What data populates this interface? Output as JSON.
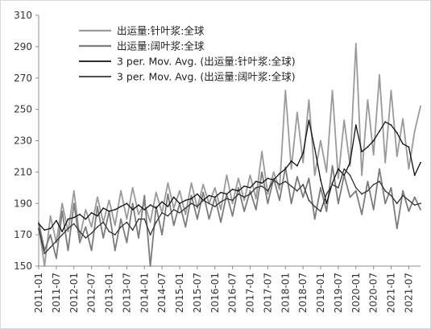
{
  "chart_data": {
    "type": "line",
    "title": "",
    "xlabel": "",
    "ylabel": "",
    "ylim": [
      150,
      310
    ],
    "yticks": [
      150,
      170,
      190,
      210,
      230,
      250,
      270,
      290,
      310
    ],
    "xlim": [
      "2011-01",
      "2021-11"
    ],
    "xticks": [
      "2011-01",
      "2011-07",
      "2012-01",
      "2012-07",
      "2013-01",
      "2013-07",
      "2014-01",
      "2014-07",
      "2015-01",
      "2015-07",
      "2016-01",
      "2016-07",
      "2017-01",
      "2017-07",
      "2018-01",
      "2018-07",
      "2019-01",
      "2019-07",
      "2020-01",
      "2020-07",
      "2021-01",
      "2021-07"
    ],
    "grid": false,
    "legend_position": "top-left",
    "series": [
      {
        "name": "出运量:针叶浆:全球",
        "color": "#9a9a9a",
        "x": [
          "2011-01",
          "2011-03",
          "2011-05",
          "2011-07",
          "2011-09",
          "2011-11",
          "2012-01",
          "2012-03",
          "2012-05",
          "2012-07",
          "2012-09",
          "2012-11",
          "2013-01",
          "2013-03",
          "2013-05",
          "2013-07",
          "2013-09",
          "2013-11",
          "2014-01",
          "2014-03",
          "2014-05",
          "2014-07",
          "2014-09",
          "2014-11",
          "2015-01",
          "2015-03",
          "2015-05",
          "2015-07",
          "2015-09",
          "2015-11",
          "2016-01",
          "2016-03",
          "2016-05",
          "2016-07",
          "2016-09",
          "2016-11",
          "2017-01",
          "2017-03",
          "2017-05",
          "2017-07",
          "2017-09",
          "2017-11",
          "2018-01",
          "2018-03",
          "2018-05",
          "2018-07",
          "2018-09",
          "2018-11",
          "2019-01",
          "2019-03",
          "2019-05",
          "2019-07",
          "2019-09",
          "2019-11",
          "2020-01",
          "2020-03",
          "2020-05",
          "2020-07",
          "2020-09",
          "2020-11",
          "2021-01",
          "2021-03",
          "2021-05",
          "2021-07",
          "2021-09",
          "2021-11"
        ],
        "values": [
          176,
          150,
          182,
          165,
          190,
          172,
          198,
          168,
          186,
          175,
          194,
          178,
          192,
          176,
          198,
          180,
          200,
          183,
          190,
          178,
          197,
          184,
          203,
          187,
          198,
          183,
          203,
          187,
          202,
          190,
          200,
          186,
          208,
          190,
          206,
          192,
          208,
          193,
          223,
          196,
          210,
          199,
          262,
          212,
          248,
          216,
          256,
          208,
          230,
          210,
          262,
          206,
          243,
          214,
          292,
          208,
          256,
          221,
          272,
          216,
          262,
          220,
          244,
          212,
          236,
          252
        ]
      },
      {
        "name": "出运量:阔叶浆:全球",
        "color": "#7c7c7c",
        "x": [
          "2011-01",
          "2011-03",
          "2011-05",
          "2011-07",
          "2011-09",
          "2011-11",
          "2012-01",
          "2012-03",
          "2012-05",
          "2012-07",
          "2012-09",
          "2012-11",
          "2013-01",
          "2013-03",
          "2013-05",
          "2013-07",
          "2013-09",
          "2013-11",
          "2014-01",
          "2014-03",
          "2014-05",
          "2014-07",
          "2014-09",
          "2014-11",
          "2015-01",
          "2015-03",
          "2015-05",
          "2015-07",
          "2015-09",
          "2015-11",
          "2016-01",
          "2016-03",
          "2016-05",
          "2016-07",
          "2016-09",
          "2016-11",
          "2017-01",
          "2017-03",
          "2017-05",
          "2017-07",
          "2017-09",
          "2017-11",
          "2018-01",
          "2018-03",
          "2018-05",
          "2018-07",
          "2018-09",
          "2018-11",
          "2019-01",
          "2019-03",
          "2019-05",
          "2019-07",
          "2019-09",
          "2019-11",
          "2020-01",
          "2020-03",
          "2020-05",
          "2020-07",
          "2020-09",
          "2020-11",
          "2021-01",
          "2021-03",
          "2021-05",
          "2021-07",
          "2021-09",
          "2021-11"
        ],
        "values": [
          178,
          160,
          170,
          155,
          185,
          160,
          190,
          165,
          175,
          160,
          188,
          168,
          185,
          160,
          180,
          165,
          190,
          168,
          195,
          150,
          188,
          170,
          196,
          176,
          190,
          175,
          195,
          180,
          197,
          180,
          194,
          178,
          196,
          182,
          200,
          185,
          198,
          186,
          210,
          190,
          206,
          192,
          213,
          190,
          207,
          194,
          206,
          180,
          200,
          185,
          214,
          190,
          208,
          194,
          198,
          183,
          204,
          186,
          212,
          190,
          200,
          174,
          198,
          185,
          194,
          186
        ]
      },
      {
        "name": "3 per. Mov. Avg. (出运量:针叶浆:全球)",
        "color": "#111111",
        "x": [
          "2011-01",
          "2011-03",
          "2011-05",
          "2011-07",
          "2011-09",
          "2011-11",
          "2012-01",
          "2012-03",
          "2012-05",
          "2012-07",
          "2012-09",
          "2012-11",
          "2013-01",
          "2013-03",
          "2013-05",
          "2013-07",
          "2013-09",
          "2013-11",
          "2014-01",
          "2014-03",
          "2014-05",
          "2014-07",
          "2014-09",
          "2014-11",
          "2015-01",
          "2015-03",
          "2015-05",
          "2015-07",
          "2015-09",
          "2015-11",
          "2016-01",
          "2016-03",
          "2016-05",
          "2016-07",
          "2016-09",
          "2016-11",
          "2017-01",
          "2017-03",
          "2017-05",
          "2017-07",
          "2017-09",
          "2017-11",
          "2018-01",
          "2018-03",
          "2018-05",
          "2018-07",
          "2018-09",
          "2018-11",
          "2019-01",
          "2019-03",
          "2019-05",
          "2019-07",
          "2019-09",
          "2019-11",
          "2020-01",
          "2020-03",
          "2020-05",
          "2020-07",
          "2020-09",
          "2020-11",
          "2021-01",
          "2021-03",
          "2021-05",
          "2021-07",
          "2021-09",
          "2021-11"
        ],
        "values": [
          177,
          173,
          174,
          179,
          172,
          180,
          181,
          183,
          180,
          184,
          182,
          187,
          185,
          186,
          188,
          190,
          186,
          189,
          186,
          189,
          187,
          191,
          188,
          194,
          190,
          192,
          193,
          196,
          192,
          195,
          194,
          197,
          196,
          199,
          198,
          201,
          200,
          204,
          203,
          206,
          205,
          209,
          212,
          217,
          214,
          222,
          243,
          225,
          205,
          190,
          203,
          212,
          208,
          216,
          240,
          223,
          226,
          230,
          236,
          242,
          240,
          235,
          228,
          226,
          208,
          216
        ]
      },
      {
        "name": "3 per. Mov. Avg. (出运量:阔叶浆:全球)",
        "color": "#333333",
        "x": [
          "2011-01",
          "2011-03",
          "2011-05",
          "2011-07",
          "2011-09",
          "2011-11",
          "2012-01",
          "2012-03",
          "2012-05",
          "2012-07",
          "2012-09",
          "2012-11",
          "2013-01",
          "2013-03",
          "2013-05",
          "2013-07",
          "2013-09",
          "2013-11",
          "2014-01",
          "2014-03",
          "2014-05",
          "2014-07",
          "2014-09",
          "2014-11",
          "2015-01",
          "2015-03",
          "2015-05",
          "2015-07",
          "2015-09",
          "2015-11",
          "2016-01",
          "2016-03",
          "2016-05",
          "2016-07",
          "2016-09",
          "2016-11",
          "2017-01",
          "2017-03",
          "2017-05",
          "2017-07",
          "2017-09",
          "2017-11",
          "2018-01",
          "2018-03",
          "2018-05",
          "2018-07",
          "2018-09",
          "2018-11",
          "2019-01",
          "2019-03",
          "2019-05",
          "2019-07",
          "2019-09",
          "2019-11",
          "2020-01",
          "2020-03",
          "2020-05",
          "2020-07",
          "2020-09",
          "2020-11",
          "2021-01",
          "2021-03",
          "2021-05",
          "2021-07",
          "2021-09",
          "2021-11"
        ],
        "values": [
          174,
          158,
          162,
          166,
          170,
          174,
          177,
          172,
          168,
          171,
          175,
          178,
          172,
          170,
          175,
          178,
          173,
          180,
          180,
          170,
          178,
          184,
          182,
          186,
          184,
          187,
          190,
          188,
          192,
          190,
          188,
          191,
          193,
          192,
          196,
          194,
          196,
          200,
          201,
          198,
          205,
          202,
          204,
          201,
          198,
          202,
          192,
          188,
          185,
          196,
          202,
          200,
          212,
          208,
          200,
          196,
          198,
          202,
          204,
          198,
          195,
          190,
          195,
          192,
          189,
          190
        ]
      }
    ]
  }
}
